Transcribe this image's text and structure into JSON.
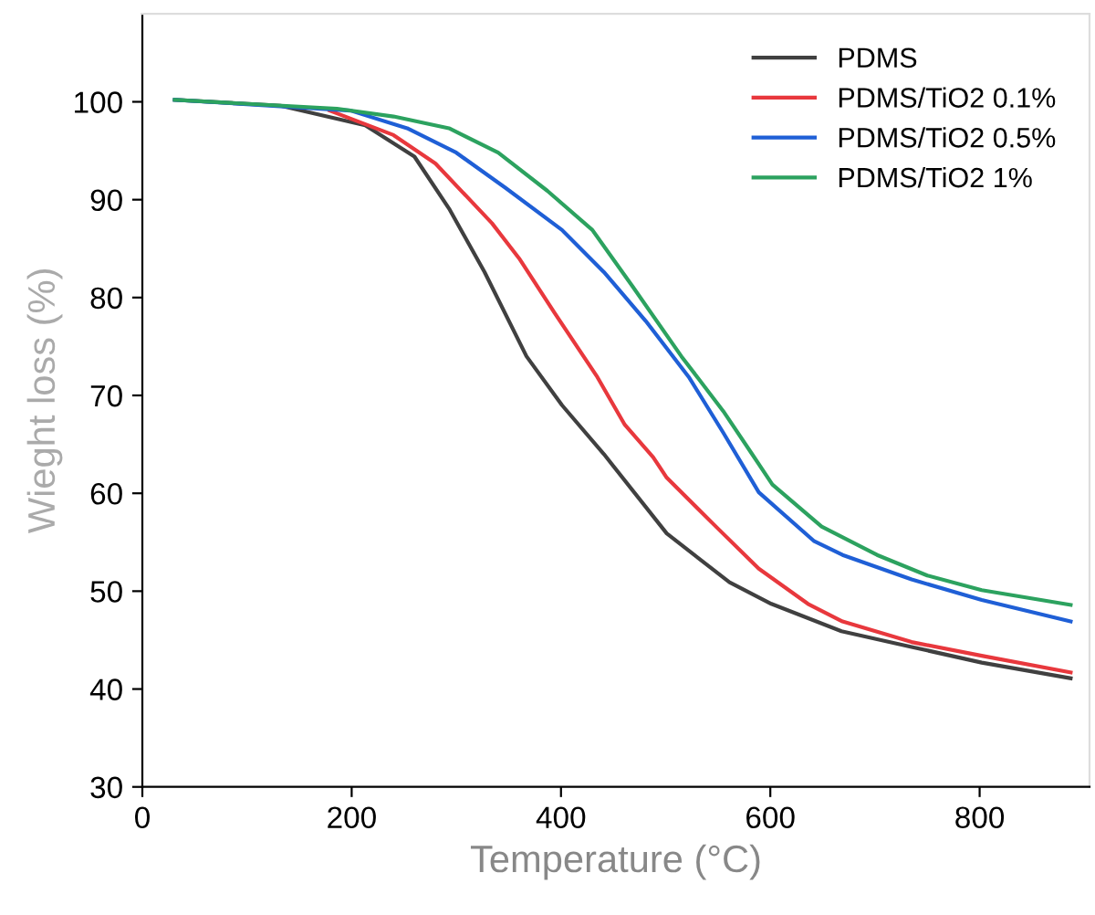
{
  "chart_data": {
    "type": "line",
    "xlabel": "Temperature (°C)",
    "ylabel": "Wieght loss (%)",
    "xlim": [
      0,
      905
    ],
    "ylim": [
      30,
      109
    ],
    "xticks": [
      0,
      200,
      400,
      600,
      800
    ],
    "yticks": [
      30,
      40,
      50,
      60,
      70,
      80,
      90,
      100
    ],
    "grid": false,
    "legend": "top right",
    "marker": "none",
    "line_style": "solid",
    "series": [
      {
        "name": "PDMS",
        "color": "#404040",
        "x": [
          31,
          132,
          213,
          260,
          293,
          327,
          367,
          401,
          441,
          501,
          561,
          601,
          668,
          735,
          802,
          887
        ],
        "values": [
          100.2,
          99.6,
          97.6,
          94.4,
          89.1,
          82.6,
          74,
          69,
          64,
          55.9,
          50.9,
          48.7,
          45.9,
          44.3,
          42.7,
          41.1
        ]
      },
      {
        "name": "PDMS/TiO2 0.1%",
        "color": "#e8383d",
        "x": [
          179,
          240,
          280,
          334,
          360,
          394,
          434,
          461,
          488,
          501,
          548,
          589,
          636,
          669,
          735,
          802,
          887
        ],
        "values": [
          99.1,
          96.6,
          93.7,
          87.6,
          84,
          78.4,
          72,
          67,
          63.7,
          61.6,
          56.6,
          52.3,
          48.7,
          46.9,
          44.8,
          43.4,
          41.7
        ]
      },
      {
        "name": "PDMS/TiO2 0.5%",
        "color": "#1f5fd6",
        "x": [
          31,
          199,
          253,
          300,
          347,
          401,
          441,
          481,
          522,
          555,
          589,
          642,
          669,
          735,
          802,
          887
        ],
        "values": [
          100.2,
          99.1,
          97.3,
          94.8,
          91.2,
          86.9,
          82.6,
          77.6,
          71.9,
          66.2,
          60.1,
          55.1,
          53.7,
          51.2,
          49.1,
          46.9
        ]
      },
      {
        "name": "PDMS/TiO2 1%",
        "color": "#2ca25f",
        "x": [
          31,
          186,
          240,
          293,
          340,
          387,
          430,
          468,
          515,
          555,
          582,
          602,
          649,
          702,
          750,
          802,
          887
        ],
        "values": [
          100.2,
          99.3,
          98.5,
          97.3,
          94.8,
          90.9,
          86.9,
          81.2,
          74,
          68.4,
          64.1,
          60.9,
          56.6,
          53.7,
          51.6,
          50.1,
          48.6
        ]
      }
    ]
  }
}
